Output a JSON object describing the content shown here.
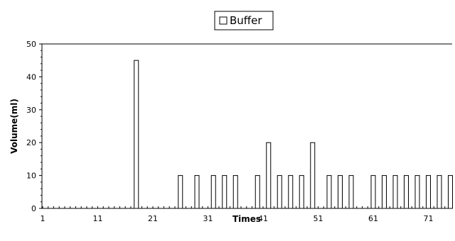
{
  "chart_data": {
    "type": "bar",
    "title": "",
    "xlabel": "Times",
    "ylabel": "Volume(ml)",
    "xlim": [
      1,
      78
    ],
    "ylim": [
      0,
      50
    ],
    "y_ticks": [
      0,
      10,
      20,
      30,
      40,
      50
    ],
    "x_tick_labels": [
      "1",
      "11",
      "21",
      "31",
      "41",
      "51",
      "61",
      "71"
    ],
    "legend": {
      "position": "top-center",
      "entries": [
        "Buffer"
      ]
    },
    "grid": false,
    "series": [
      {
        "name": "Buffer",
        "points": [
          [
            18,
            45
          ],
          [
            26,
            10
          ],
          [
            29,
            10
          ],
          [
            32,
            10
          ],
          [
            34,
            10
          ],
          [
            36,
            10
          ],
          [
            40,
            10
          ],
          [
            42,
            20
          ],
          [
            44,
            10
          ],
          [
            46,
            10
          ],
          [
            48,
            10
          ],
          [
            50,
            20
          ],
          [
            53,
            10
          ],
          [
            55,
            10
          ],
          [
            57,
            10
          ],
          [
            61,
            10
          ],
          [
            63,
            10
          ],
          [
            65,
            10
          ],
          [
            67,
            10
          ],
          [
            69,
            10
          ],
          [
            71,
            10
          ],
          [
            73,
            10
          ],
          [
            75,
            10
          ],
          [
            77,
            10
          ]
        ]
      }
    ]
  }
}
